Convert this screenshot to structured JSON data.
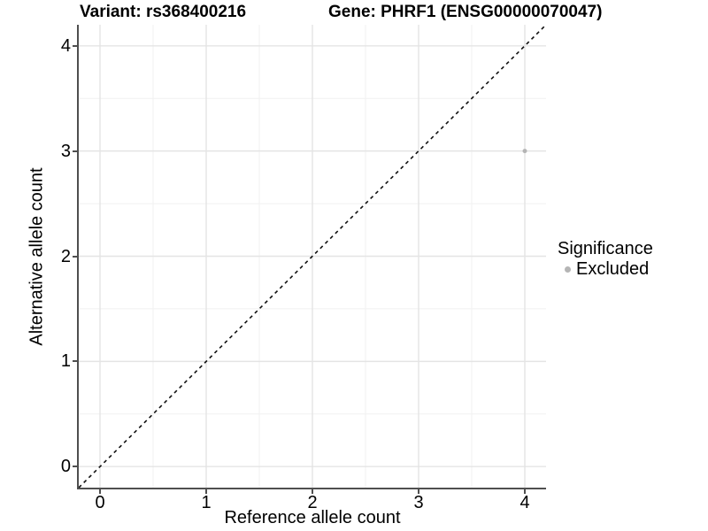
{
  "colors": {
    "background": "#ffffff",
    "text": "#000000",
    "axis": "#4f4f4f",
    "grid_major": "#e4e4e4",
    "grid_minor": "#f1f1f1",
    "point": "#b5b5b5",
    "reference_line": "#111111"
  },
  "chart_data": {
    "type": "scatter",
    "title_left": "Variant: rs368400216",
    "title_right": "Gene: PHRF1 (ENSG00000070047)",
    "xlabel": "Reference allele count",
    "ylabel": "Alternative allele count",
    "xlim": [
      -0.2,
      4.2
    ],
    "ylim": [
      -0.2,
      4.2
    ],
    "x_ticks": [
      0,
      1,
      2,
      3,
      4
    ],
    "y_ticks": [
      0,
      1,
      2,
      3,
      4
    ],
    "grid": "major and minor, minor at 0.5 steps",
    "legend_position": "right",
    "series": [
      {
        "name": "Excluded",
        "points": [
          {
            "x": 4,
            "y": 3
          }
        ],
        "color": "#b5b5b5",
        "marker": "circle"
      }
    ],
    "reference_line": {
      "slope": 1,
      "intercept": 0,
      "style": "dashed",
      "color": "#111111"
    },
    "legend": {
      "title": "Significance",
      "entries": [
        {
          "label": "Excluded",
          "color": "#b5b5b5"
        }
      ]
    }
  }
}
